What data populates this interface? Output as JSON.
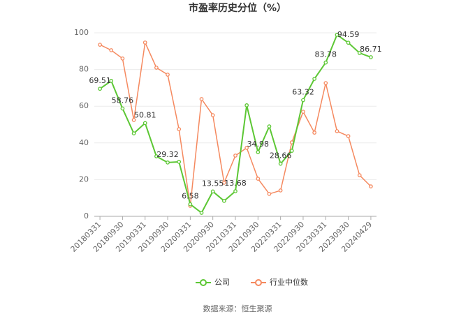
{
  "chart_data": {
    "type": "line",
    "title": "市盈率历史分位（%）",
    "categories": [
      "20180331",
      null,
      "20180930",
      null,
      "20190331",
      null,
      "20190930",
      null,
      "20200331",
      null,
      "20200930",
      null,
      "20210331",
      null,
      "20210930",
      null,
      "20220331",
      null,
      "20220930",
      null,
      "20230331",
      null,
      "20230930",
      null,
      "20240429"
    ],
    "series": [
      {
        "name": "公司",
        "color": "#5cc734",
        "values": [
          69.51,
          73.8,
          58.76,
          45.2,
          50.81,
          32.7,
          29.32,
          29.7,
          6.58,
          1.9,
          13.55,
          8.4,
          13.68,
          60.5,
          34.98,
          49.0,
          28.66,
          35.7,
          63.32,
          74.9,
          83.78,
          98.9,
          94.59,
          89.0,
          86.71
        ],
        "value_labels": [
          "69.51",
          null,
          "58.76",
          null,
          "50.81",
          null,
          "29.32",
          null,
          "6.58",
          null,
          "13.55",
          null,
          "13.68",
          null,
          "34.98",
          null,
          "28.66",
          null,
          "63.32",
          null,
          "83.78",
          null,
          "94.59",
          null,
          "86.71"
        ]
      },
      {
        "name": "行业中位数",
        "color": "#f5895f",
        "values": [
          93.5,
          90.5,
          86.0,
          52.5,
          94.7,
          81.0,
          77.2,
          47.5,
          5.7,
          63.9,
          55.1,
          18.3,
          33.1,
          37.3,
          20.5,
          12.2,
          14.1,
          40.3,
          57.0,
          45.6,
          72.6,
          46.4,
          43.7,
          22.4,
          16.3
        ]
      }
    ],
    "ylim": [
      0,
      100
    ],
    "yticks": [
      0,
      20,
      40,
      60,
      80,
      100
    ],
    "grid": true,
    "source": "数据来源：恒生聚源"
  }
}
